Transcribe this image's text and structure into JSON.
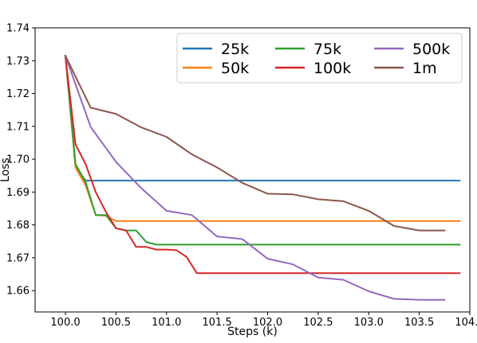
{
  "chart_data": {
    "type": "line",
    "title": "",
    "xlabel": "Steps (k)",
    "ylabel": "Loss",
    "xlim": [
      99.7,
      104.0
    ],
    "ylim": [
      1.6535,
      1.74
    ],
    "xticks": [
      100.0,
      100.5,
      101.0,
      101.5,
      102.0,
      102.5,
      103.0,
      103.5,
      104.0
    ],
    "xtick_labels": [
      "100.0",
      "100.5",
      "101.0",
      "101.5",
      "102.0",
      "102.5",
      "103.0",
      "103.5",
      "104.0"
    ],
    "yticks": [
      1.66,
      1.67,
      1.68,
      1.69,
      1.7,
      1.71,
      1.72,
      1.73,
      1.74
    ],
    "ytick_labels": [
      "1.66",
      "1.67",
      "1.68",
      "1.69",
      "1.70",
      "1.71",
      "1.72",
      "1.73",
      "1.74"
    ],
    "grid": false,
    "legend": {
      "position": "top-right",
      "columns": 3
    },
    "series": [
      {
        "name": "25k",
        "color": "#1f77b4",
        "x": [
          100.0,
          100.1,
          100.2,
          103.9
        ],
        "y": [
          1.7315,
          1.6975,
          1.6935,
          1.6935
        ]
      },
      {
        "name": "50k",
        "color": "#ff7f0e",
        "x": [
          100.0,
          100.1,
          100.2,
          100.3,
          100.4,
          100.5,
          103.9
        ],
        "y": [
          1.7315,
          1.6975,
          1.692,
          1.683,
          1.6828,
          1.6812,
          1.6812
        ]
      },
      {
        "name": "75k",
        "color": "#2ca02c",
        "x": [
          100.0,
          100.1,
          100.2,
          100.3,
          100.4,
          100.5,
          100.6,
          100.7,
          100.8,
          100.9,
          103.9
        ],
        "y": [
          1.7315,
          1.6985,
          1.693,
          1.683,
          1.683,
          1.679,
          1.6783,
          1.6783,
          1.6748,
          1.674,
          1.674
        ]
      },
      {
        "name": "100k",
        "color": "#d62728",
        "x": [
          100.0,
          100.1,
          100.2,
          100.3,
          100.4,
          100.5,
          100.6,
          100.7,
          100.8,
          100.9,
          101.0,
          101.1,
          101.2,
          101.3,
          103.9
        ],
        "y": [
          1.7315,
          1.7045,
          1.6985,
          1.69,
          1.684,
          1.679,
          1.6783,
          1.6733,
          1.6733,
          1.6725,
          1.6725,
          1.6723,
          1.6702,
          1.6653,
          1.6653
        ]
      },
      {
        "name": "500k",
        "color": "#9467bd",
        "x": [
          100.0,
          100.25,
          100.5,
          100.75,
          101.0,
          101.25,
          101.5,
          101.75,
          102.0,
          102.25,
          102.5,
          102.75,
          103.0,
          103.25,
          103.5,
          103.75
        ],
        "y": [
          1.7315,
          1.7098,
          1.6992,
          1.6912,
          1.6843,
          1.683,
          1.6765,
          1.6757,
          1.6697,
          1.668,
          1.664,
          1.6633,
          1.6598,
          1.6575,
          1.6572,
          1.6572
        ]
      },
      {
        "name": "1m",
        "color": "#8c564b",
        "x": [
          100.0,
          100.25,
          100.5,
          100.75,
          101.0,
          101.25,
          101.5,
          101.75,
          102.0,
          102.25,
          102.5,
          102.75,
          103.0,
          103.25,
          103.5,
          103.75
        ],
        "y": [
          1.7315,
          1.7157,
          1.7138,
          1.7097,
          1.7068,
          1.7015,
          1.6975,
          1.6928,
          1.6895,
          1.6893,
          1.6878,
          1.6872,
          1.6843,
          1.6797,
          1.6783,
          1.6783
        ]
      }
    ]
  }
}
